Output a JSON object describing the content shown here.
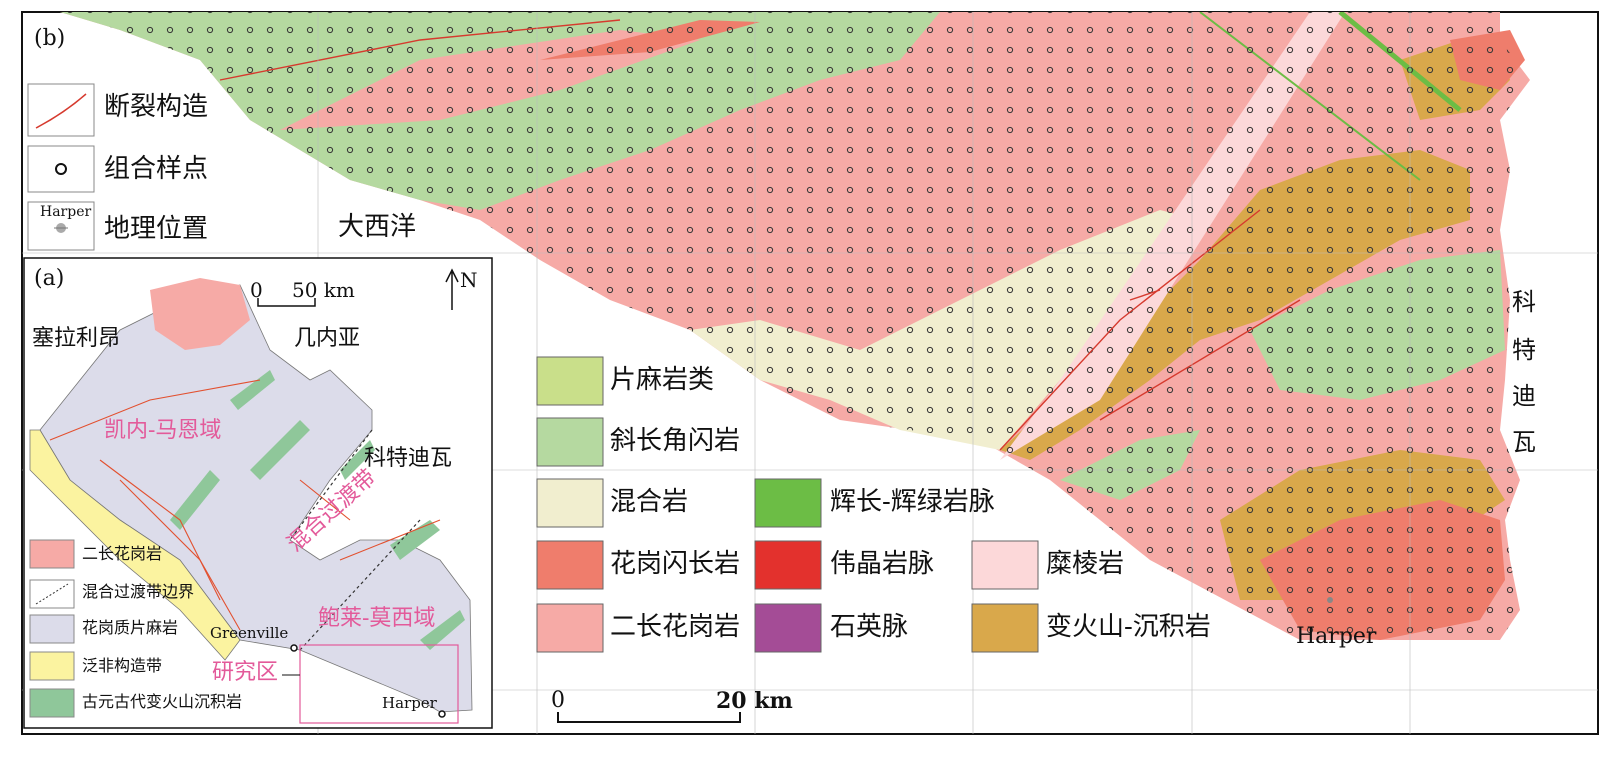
{
  "panel_b": {
    "label": "(b)",
    "ocean_label": "大西洋",
    "country_right": [
      "科",
      "特",
      "迪",
      "瓦"
    ],
    "harper_label": "Harper",
    "scale": {
      "zero": "0",
      "end": "20 km"
    },
    "top_legend": [
      {
        "label": "断裂构造",
        "icon": "fault-line-icon"
      },
      {
        "label": "组合样点",
        "icon": "sample-point-icon"
      },
      {
        "label": "地理位置",
        "icon": "location-marker-icon",
        "sublabel": "Harper"
      }
    ],
    "lithology_legend": [
      {
        "label": "片麻岩类",
        "color": "#c9df8a"
      },
      {
        "label": "斜长角闪岩",
        "color": "#b5d9a0"
      },
      {
        "label": "混合岩",
        "color": "#f1eecf"
      },
      {
        "label": "花岗闪长岩",
        "color": "#ef7d6c"
      },
      {
        "label": "二长花岗岩",
        "color": "#f6aaa6"
      },
      {
        "label": "辉长-辉绿岩脉",
        "color": "#6cbd45"
      },
      {
        "label": "伟晶岩脉",
        "color": "#e3312d"
      },
      {
        "label": "石英脉",
        "color": "#a44c96"
      },
      {
        "label": "糜棱岩",
        "color": "#fcd8d9"
      },
      {
        "label": "变火山-沉积岩",
        "color": "#d9a84b"
      }
    ]
  },
  "panel_a": {
    "label": "(a)",
    "scale": {
      "zero": "0",
      "end": "50 km"
    },
    "north": "N",
    "countries": {
      "sierra_leone": "塞拉利昂",
      "guinea": "几内亚",
      "cote_divoire": "科特迪瓦"
    },
    "domains": {
      "kenema_man": "凯内-马恩域",
      "transition": "混合过渡带",
      "baoule_mossi": "鲍莱-莫西域",
      "study_area": "研究区"
    },
    "towns": {
      "greenville": "Greenville",
      "harper": "Harper"
    },
    "legend": [
      {
        "label": "二长花岗岩",
        "color": "#f6aaa6"
      },
      {
        "label": "混合过渡带边界",
        "color": "#333333"
      },
      {
        "label": "花岗质片麻岩",
        "color": "#dcdcea"
      },
      {
        "label": "泛非构造带",
        "color": "#fbf3a0"
      },
      {
        "label": "古元古代变火山沉积岩",
        "color": "#8fc79a"
      }
    ]
  }
}
